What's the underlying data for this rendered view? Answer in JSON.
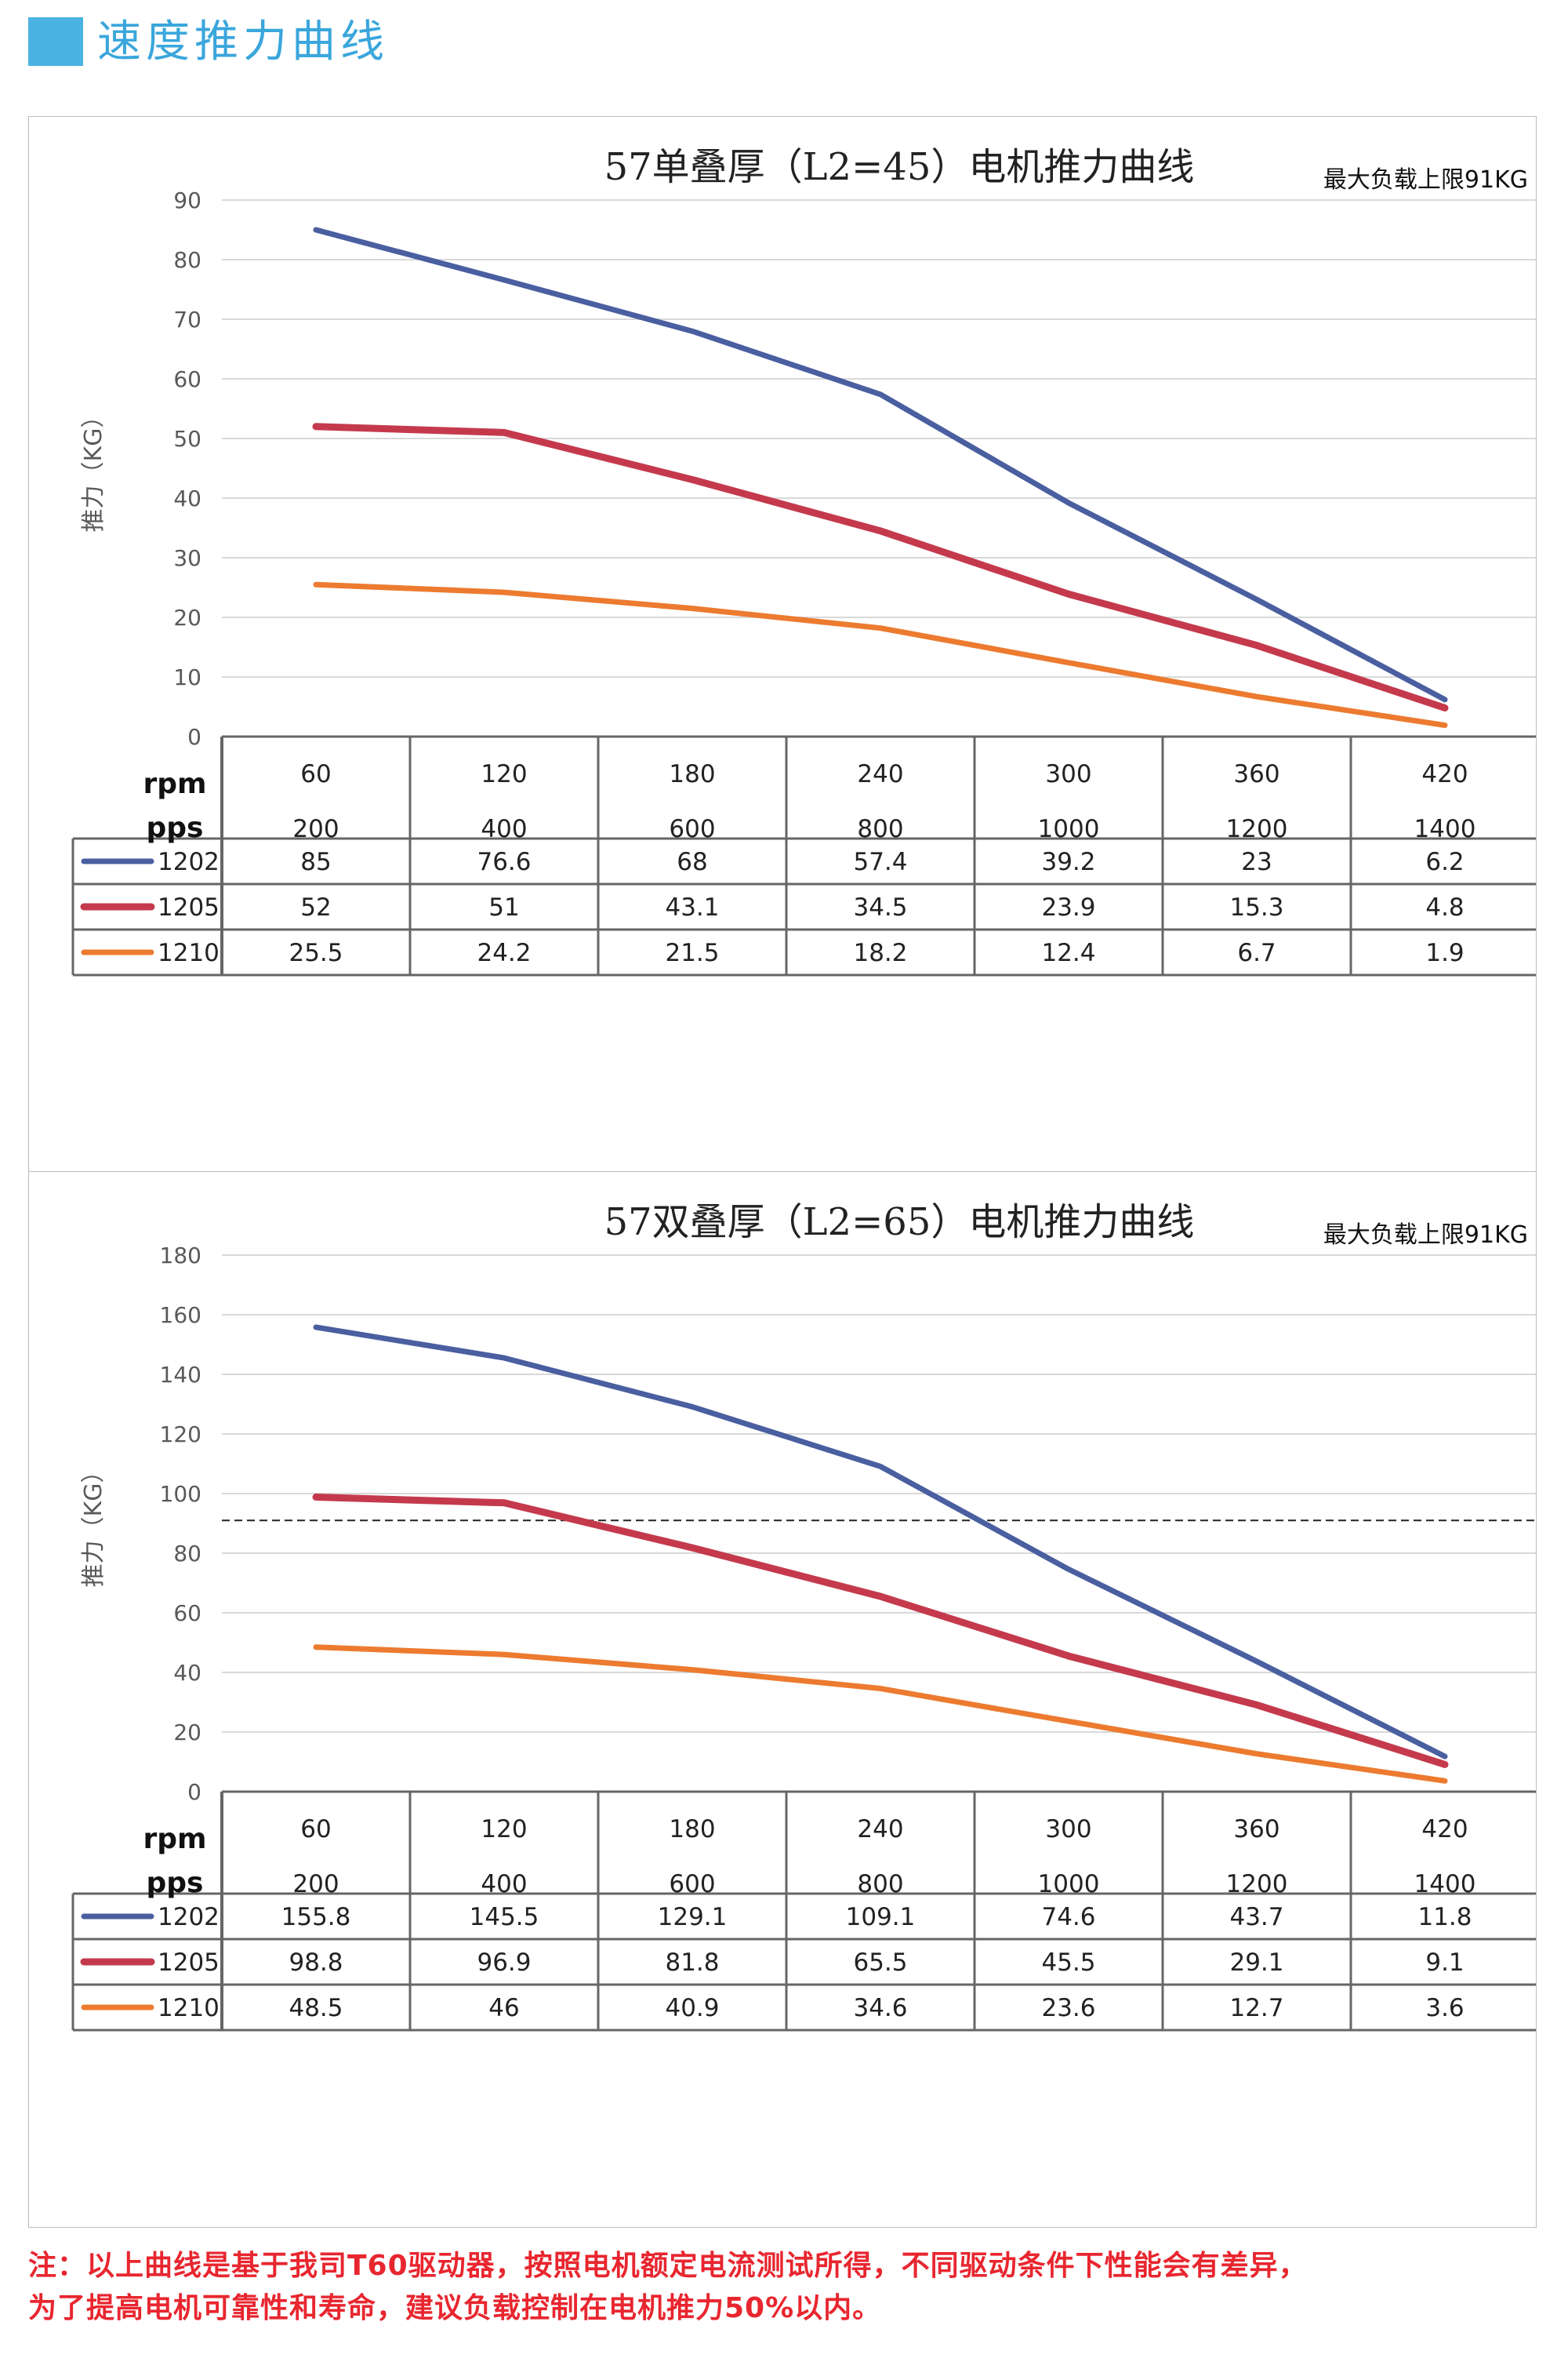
{
  "header": {
    "title": "速度推力曲线"
  },
  "colors": {
    "accent": "#4bb3e3",
    "header_text": "#3aa6dc",
    "note_red": "#e8262f",
    "series_1202": "#4a5fa0",
    "series_1205": "#c43a4c",
    "series_1210": "#ec7b30"
  },
  "table_headers": {
    "rpm": "rpm",
    "pps": "pps"
  },
  "chart_data": [
    {
      "type": "line",
      "title": "57单叠厚（L2=45）电机推力曲线",
      "note": "最大负载上限91KG",
      "ylabel": "推力（KG）",
      "ylim": [
        0,
        90
      ],
      "ytick_step": 10,
      "grid": true,
      "reference_line": null,
      "categories_rpm": [
        "60",
        "120",
        "180",
        "240",
        "300",
        "360",
        "420"
      ],
      "categories_pps": [
        "200",
        "400",
        "600",
        "800",
        "1000",
        "1200",
        "1400"
      ],
      "series": [
        {
          "name": "1202",
          "color": "#4a5fa0",
          "values": [
            85,
            76.6,
            68,
            57.4,
            39.2,
            23,
            6.2
          ]
        },
        {
          "name": "1205",
          "color": "#c43a4c",
          "values": [
            52,
            51,
            43.1,
            34.5,
            23.9,
            15.3,
            4.8
          ]
        },
        {
          "name": "1210",
          "color": "#ec7b30",
          "values": [
            25.5,
            24.2,
            21.5,
            18.2,
            12.4,
            6.7,
            1.9
          ]
        }
      ]
    },
    {
      "type": "line",
      "title": "57双叠厚（L2=65）电机推力曲线",
      "note": "最大负载上限91KG",
      "ylabel": "推力（KG）",
      "ylim": [
        0,
        180
      ],
      "ytick_step": 20,
      "grid": true,
      "reference_line": 91,
      "categories_rpm": [
        "60",
        "120",
        "180",
        "240",
        "300",
        "360",
        "420"
      ],
      "categories_pps": [
        "200",
        "400",
        "600",
        "800",
        "1000",
        "1200",
        "1400"
      ],
      "series": [
        {
          "name": "1202",
          "color": "#4a5fa0",
          "values": [
            155.8,
            145.5,
            129.1,
            109.1,
            74.6,
            43.7,
            11.8
          ]
        },
        {
          "name": "1205",
          "color": "#c43a4c",
          "values": [
            98.8,
            96.9,
            81.8,
            65.5,
            45.5,
            29.1,
            9.1
          ]
        },
        {
          "name": "1210",
          "color": "#ec7b30",
          "values": [
            48.5,
            46,
            40.9,
            34.6,
            23.6,
            12.7,
            3.6
          ]
        }
      ]
    }
  ],
  "footer": {
    "line1": "注：以上曲线是基于我司T60驱动器，按照电机额定电流测试所得，不同驱动条件下性能会有差异，",
    "line2": "为了提高电机可靠性和寿命，建议负载控制在电机推力50%以内。"
  }
}
